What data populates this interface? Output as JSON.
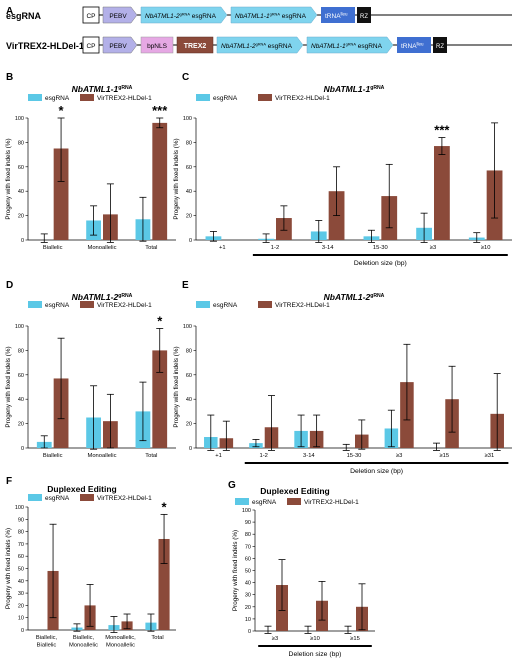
{
  "constructs": {
    "panel_label": "A",
    "row1_name": "esgRNA",
    "row2_name": "VirTREX2-HLDel-1",
    "cp": "CP",
    "pebv": "PEBV",
    "bpnls": "bpNLS",
    "trex2": "TREX2",
    "grna_a_prefix": "NbATML1-2",
    "grna_a_sup": "gRNA",
    "grna_b_prefix": "NbATML1-1",
    "grna_b_sup": "gRNA",
    "grna_suffix": " esgRNA",
    "trna_prefix": "tRNA",
    "trna_sup": "lleu",
    "rz": "RZ"
  },
  "colors": {
    "esgRNA": "#5bc8e6",
    "VirTREX2": "#8b4a3a",
    "pebv": "#b3b0e8",
    "bpnls": "#e6a8e4",
    "trex2": "#8b4a3a",
    "grna": "#7fd4ee",
    "trna": "#3f6fd1",
    "rz": "#111111"
  },
  "shared": {
    "ylabel": "Progeny with fixed indels (%)",
    "legend_a": "esgRNA",
    "legend_b": "VirTREX2-HLDel-1",
    "deletion_label": "Deletion size (bp)"
  },
  "chart_data": [
    {
      "panel": "B",
      "type": "bar",
      "title_prefix": "NbATML1-1",
      "title_sup": "gRNA",
      "categories": [
        "Biallelic",
        "Monoallelic",
        "Total"
      ],
      "ylim": [
        0,
        100
      ],
      "yticks": [
        0,
        20,
        40,
        60,
        80,
        100
      ],
      "series": [
        {
          "name": "esgRNA",
          "values": [
            0,
            16,
            17
          ],
          "err": [
            5,
            12,
            18
          ]
        },
        {
          "name": "VirTREX2-HLDel-1",
          "values": [
            75,
            21,
            96
          ],
          "err": [
            27,
            25,
            4
          ]
        }
      ],
      "annotations": [
        {
          "category": "Biallelic",
          "text": "*"
        },
        {
          "category": "Total",
          "text": "***"
        }
      ]
    },
    {
      "panel": "C",
      "type": "bar",
      "title_prefix": "NbATML1-1",
      "title_sup": "gRNA",
      "categories": [
        "+1",
        "1-2",
        "3-14",
        "15-30",
        "≥3",
        "≥10"
      ],
      "ylim": [
        0,
        100
      ],
      "yticks": [
        0,
        20,
        40,
        60,
        80,
        100
      ],
      "series": [
        {
          "name": "esgRNA",
          "values": [
            3,
            1,
            7,
            3,
            10,
            2
          ],
          "err": [
            4,
            4,
            9,
            5,
            12,
            4
          ]
        },
        {
          "name": "VirTREX2-HLDel-1",
          "values": [
            0,
            18,
            40,
            36,
            77,
            57
          ],
          "err": [
            0,
            10,
            20,
            26,
            7,
            39
          ]
        }
      ],
      "annotations": [
        {
          "category": "≥3",
          "text": "***"
        }
      ],
      "deletion_range": [
        "1-2",
        "≥10"
      ]
    },
    {
      "panel": "D",
      "type": "bar",
      "title_prefix": "NbATML1-2",
      "title_sup": "gRNA",
      "categories": [
        "Biallelic",
        "Monoallelic",
        "Total"
      ],
      "ylim": [
        0,
        100
      ],
      "yticks": [
        0,
        20,
        40,
        60,
        80,
        100
      ],
      "series": [
        {
          "name": "esgRNA",
          "values": [
            5,
            25,
            30
          ],
          "err": [
            5,
            26,
            24
          ]
        },
        {
          "name": "VirTREX2-HLDel-1",
          "values": [
            57,
            22,
            80
          ],
          "err": [
            33,
            22,
            18
          ]
        }
      ],
      "annotations": [
        {
          "category": "Total",
          "text": "*"
        }
      ]
    },
    {
      "panel": "E",
      "type": "bar",
      "title_prefix": "NbATML1-2",
      "title_sup": "gRNA",
      "categories": [
        "+1",
        "1-2",
        "3-14",
        "15-30",
        "≥3",
        "≥15",
        "≥31"
      ],
      "ylim": [
        0,
        100
      ],
      "yticks": [
        0,
        20,
        40,
        60,
        80,
        100
      ],
      "series": [
        {
          "name": "esgRNA",
          "values": [
            9,
            4,
            14,
            0,
            16,
            0,
            0
          ],
          "err": [
            18,
            3,
            13,
            3,
            15,
            4,
            0
          ]
        },
        {
          "name": "VirTREX2-HLDel-1",
          "values": [
            8,
            17,
            14,
            11,
            54,
            40,
            28
          ],
          "err": [
            14,
            26,
            13,
            12,
            31,
            27,
            33
          ]
        }
      ],
      "annotations": [],
      "deletion_range": [
        "1-2",
        "≥31"
      ]
    },
    {
      "panel": "F",
      "type": "bar",
      "title": "Duplexed Editing",
      "categories": [
        "Biallelic,\nBiallelic",
        "Biallelic,\nMonoallelic",
        "Monoallelic,\nMonoallelic",
        "Total"
      ],
      "ylim": [
        0,
        100
      ],
      "yticks": [
        0,
        10,
        20,
        30,
        40,
        50,
        60,
        70,
        80,
        90,
        100
      ],
      "series": [
        {
          "name": "esgRNA",
          "values": [
            0,
            2,
            4,
            6
          ],
          "err": [
            0,
            3,
            7,
            7
          ]
        },
        {
          "name": "VirTREX2-HLDel-1",
          "values": [
            48,
            20,
            7,
            74
          ],
          "err": [
            38,
            17,
            6,
            20
          ]
        }
      ],
      "annotations": [
        {
          "category": "Total",
          "text": "*"
        }
      ]
    },
    {
      "panel": "G",
      "type": "bar",
      "title": "Duplexed Editing",
      "categories": [
        "≥3",
        "≥10",
        "≥15"
      ],
      "ylim": [
        0,
        100
      ],
      "yticks": [
        0,
        10,
        20,
        30,
        40,
        50,
        60,
        70,
        80,
        90,
        100
      ],
      "series": [
        {
          "name": "esgRNA",
          "values": [
            0,
            0,
            0
          ],
          "err": [
            4,
            4,
            4
          ]
        },
        {
          "name": "VirTREX2-HLDel-1",
          "values": [
            38,
            25,
            20
          ],
          "err": [
            21,
            16,
            19
          ]
        }
      ],
      "annotations": [],
      "deletion_range": [
        "≥3",
        "≥15"
      ]
    }
  ]
}
